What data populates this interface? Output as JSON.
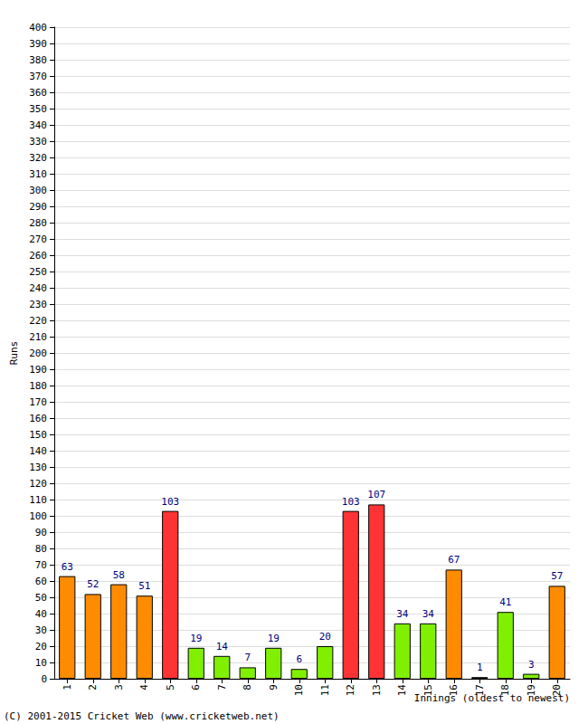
{
  "chart_data": {
    "type": "bar",
    "x_label": "Innings (oldest to newest)",
    "y_label": "Runs",
    "annotations": [
      "(C) 2001-2015 Cricket Web (www.cricketweb.net)"
    ],
    "categories": [
      "1",
      "2",
      "3",
      "4",
      "5",
      "6",
      "7",
      "8",
      "9",
      "10",
      "11",
      "12",
      "13",
      "14",
      "15",
      "16",
      "17",
      "18",
      "19",
      "20"
    ],
    "values": [
      63,
      52,
      58,
      51,
      103,
      19,
      14,
      7,
      19,
      6,
      20,
      103,
      107,
      34,
      34,
      67,
      1,
      41,
      3,
      57
    ],
    "colors": [
      "#ff8c00",
      "#ff8c00",
      "#ff8c00",
      "#ff8c00",
      "#ff3333",
      "#80f000",
      "#80f000",
      "#80f000",
      "#80f000",
      "#80f000",
      "#80f000",
      "#ff3333",
      "#ff3333",
      "#80f000",
      "#80f000",
      "#ff8c00",
      "#80f000",
      "#80f000",
      "#80f000",
      "#ff8c00"
    ],
    "ylim": [
      0,
      400
    ],
    "yticks": [
      0,
      10,
      20,
      30,
      40,
      50,
      60,
      70,
      80,
      90,
      100,
      110,
      120,
      130,
      140,
      150,
      160,
      170,
      180,
      190,
      200,
      210,
      220,
      230,
      240,
      250,
      260,
      270,
      280,
      290,
      300,
      310,
      320,
      330,
      340,
      350,
      360,
      370,
      380,
      390,
      400
    ],
    "grid": true,
    "data_labels": true
  }
}
